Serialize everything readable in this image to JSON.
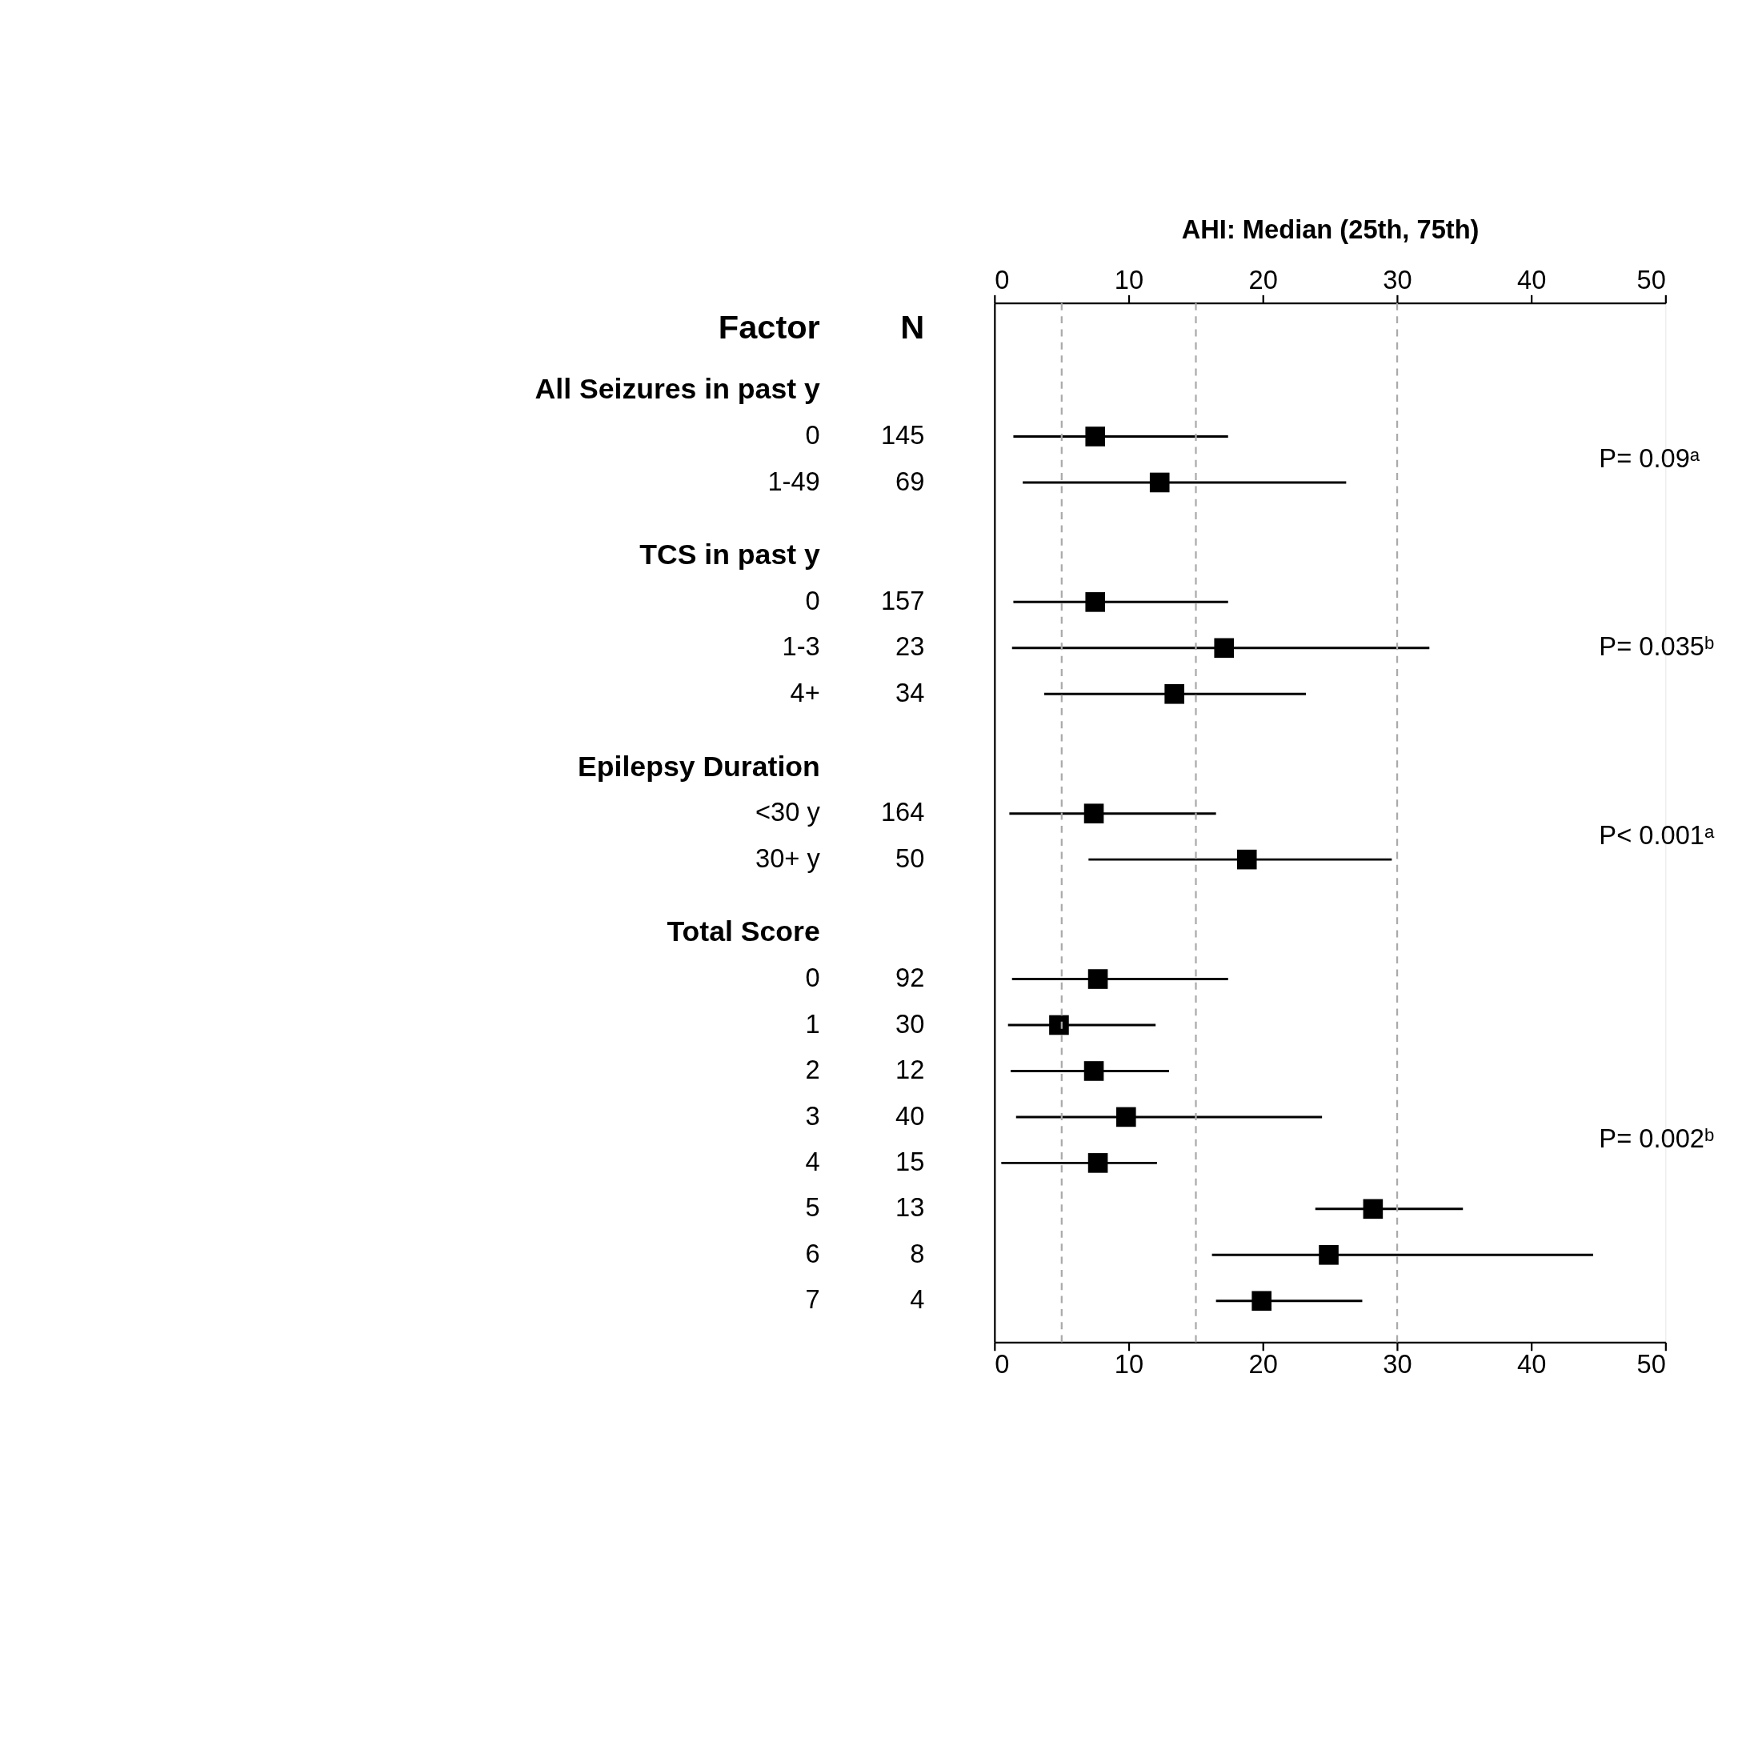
{
  "chart_data": {
    "type": "scatter",
    "orientation": "horizontal",
    "x2label": "AHI: Median (25th, 75th)",
    "categories": [
      "All Seizures in past y",
      "0",
      "1-49",
      "TCS in past y",
      "0",
      "1-3",
      "4+",
      "Epilepsy Duration",
      "<30 y",
      "30+ y",
      "Total Score",
      "0",
      "1",
      "2",
      "3",
      "4",
      "5",
      "6",
      "7"
    ],
    "values": [
      null,
      7.5,
      12.3,
      null,
      7.5,
      17.1,
      13.4,
      null,
      7.4,
      18.8,
      null,
      7.7,
      4.8,
      7.4,
      9.8,
      7.7,
      28.2,
      24.9,
      19.9
    ],
    "errors": [
      null,
      [
        1.4,
        17.4
      ],
      [
        2.1,
        26.2
      ],
      null,
      [
        1.4,
        17.4
      ],
      [
        1.3,
        32.4
      ],
      [
        3.7,
        23.2
      ],
      null,
      [
        1.1,
        16.5
      ],
      [
        7.0,
        29.6
      ],
      null,
      [
        1.3,
        17.4
      ],
      [
        1.0,
        12.0
      ],
      [
        1.2,
        13.0
      ],
      [
        1.6,
        24.4
      ],
      [
        0.5,
        12.1
      ],
      [
        23.9,
        34.9
      ],
      [
        16.2,
        44.6
      ],
      [
        16.5,
        27.4
      ]
    ],
    "color": "#000000",
    "marker": "square",
    "xlim": [
      0,
      50
    ],
    "xticks": [
      0,
      10,
      20,
      30,
      40,
      50
    ],
    "x2lim": [
      0,
      50
    ],
    "x2ticks": [
      0,
      10,
      20,
      30,
      40,
      50
    ],
    "ref_lines": [
      {
        "axis": "x",
        "value": 5,
        "color": "#aaaaaa",
        "line_style": "dashed"
      },
      {
        "axis": "x",
        "value": 15,
        "color": "#aaaaaa",
        "line_style": "dashed"
      },
      {
        "axis": "x",
        "value": 30,
        "color": "#aaaaaa",
        "line_style": "dashed"
      }
    ],
    "annotations": [
      "Factor",
      "N",
      "145",
      "69",
      "157",
      "23",
      "34",
      "164",
      "50",
      "92",
      "30",
      "12",
      "40",
      "15",
      "13",
      "8",
      "4",
      "P= 0.09ᵃ",
      "P= 0.035ᵇ",
      "P< 0.001ᵃ",
      "P= 0.002ᵇ"
    ],
    "grid": false
  }
}
